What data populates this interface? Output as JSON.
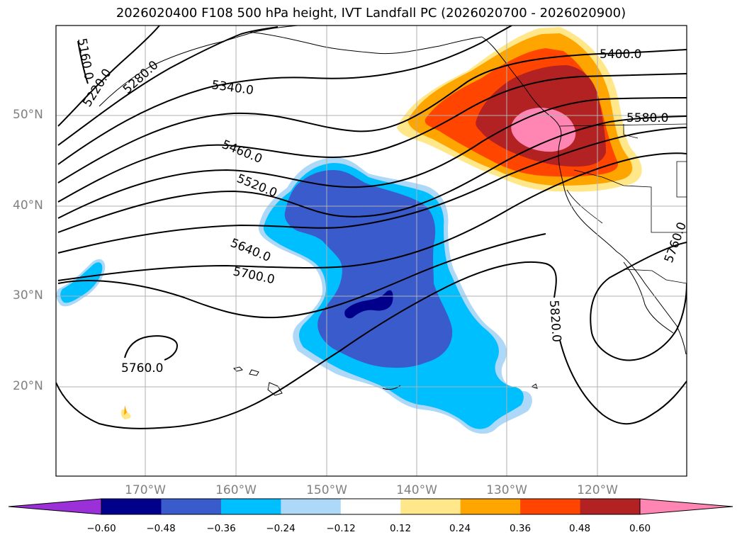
{
  "title": "2026020400 F108 500 hPa height, IVT Landfall PC (2026020700 - 2026020900)",
  "latitude_labels": [
    "50°N",
    "40°N",
    "30°N",
    "20°N"
  ],
  "longitude_labels": [
    "170°W",
    "160°W",
    "150°W",
    "140°W",
    "130°W",
    "120°W"
  ],
  "contour_labels": [
    "5160.0",
    "5220.0",
    "5280.0",
    "5340.0",
    "5400.0",
    "5460.0",
    "5520.0",
    "5580.0",
    "5640.0",
    "5700.0",
    "5760.0",
    "5760.0",
    "5820.0"
  ],
  "colorbar": {
    "ticks": [
      "−0.60",
      "−0.48",
      "−0.36",
      "−0.24",
      "−0.12",
      "0.12",
      "0.24",
      "0.36",
      "0.48",
      "0.60"
    ],
    "colors": [
      "#9b30d9",
      "#00008b",
      "#3a5bcc",
      "#00bfff",
      "#add8f7",
      "#ffffff",
      "#ffe78a",
      "#ffa500",
      "#ff4500",
      "#b22222",
      "#ff85b3"
    ]
  }
}
